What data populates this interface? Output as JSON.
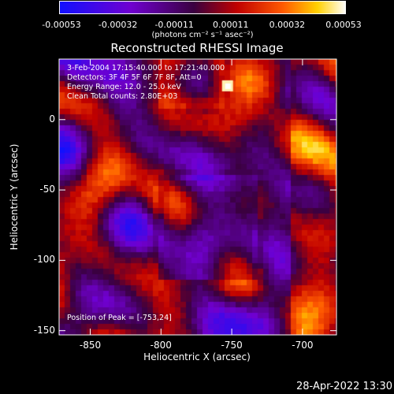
{
  "colorbar": {
    "ticks": [
      "-0.00053",
      "-0.00032",
      "-0.00011",
      "0.00011",
      "0.00032",
      "0.00053"
    ],
    "units": "(photons cm⁻² s⁻¹ asec⁻²)",
    "colors": [
      "#1010ff",
      "#7000d0",
      "#3a0040",
      "#c00000",
      "#ff5a00",
      "#ffd000",
      "#ffffff"
    ]
  },
  "plot": {
    "title": "Reconstructed RHESSI Image",
    "xlabel": "Heliocentric X (arcsec)",
    "ylabel": "Heliocentric Y (arcsec)",
    "xticks": [
      "-850",
      "-800",
      "-750",
      "-700"
    ],
    "yticks": [
      "0",
      "-50",
      "-100",
      "-150"
    ],
    "info_lines": [
      "3-Feb-2004 17:15:40.000 to 17:21:40.000",
      "Detectors: 3F 4F 5F 6F 7F 8F, Att=0",
      "Energy Range: 12.0 - 25.0 keV",
      "Clean    Total counts: 2.80E+03"
    ],
    "peak_text": "Position of Peak = [-753,24]"
  },
  "chart_data": {
    "type": "heatmap",
    "title": "Reconstructed RHESSI Image",
    "xlabel": "Heliocentric X (arcsec)",
    "ylabel": "Heliocentric Y (arcsec)",
    "xlim": [
      -872,
      -676
    ],
    "ylim": [
      -153,
      43
    ],
    "xticks": [
      -850,
      -800,
      -750,
      -700
    ],
    "yticks": [
      0,
      -50,
      -100,
      -150
    ],
    "colorbar_range": [
      -0.00053,
      0.00053
    ],
    "peak_position": [
      -753,
      24
    ]
  },
  "footer": {
    "date": "28-Apr-2022 13:30"
  }
}
